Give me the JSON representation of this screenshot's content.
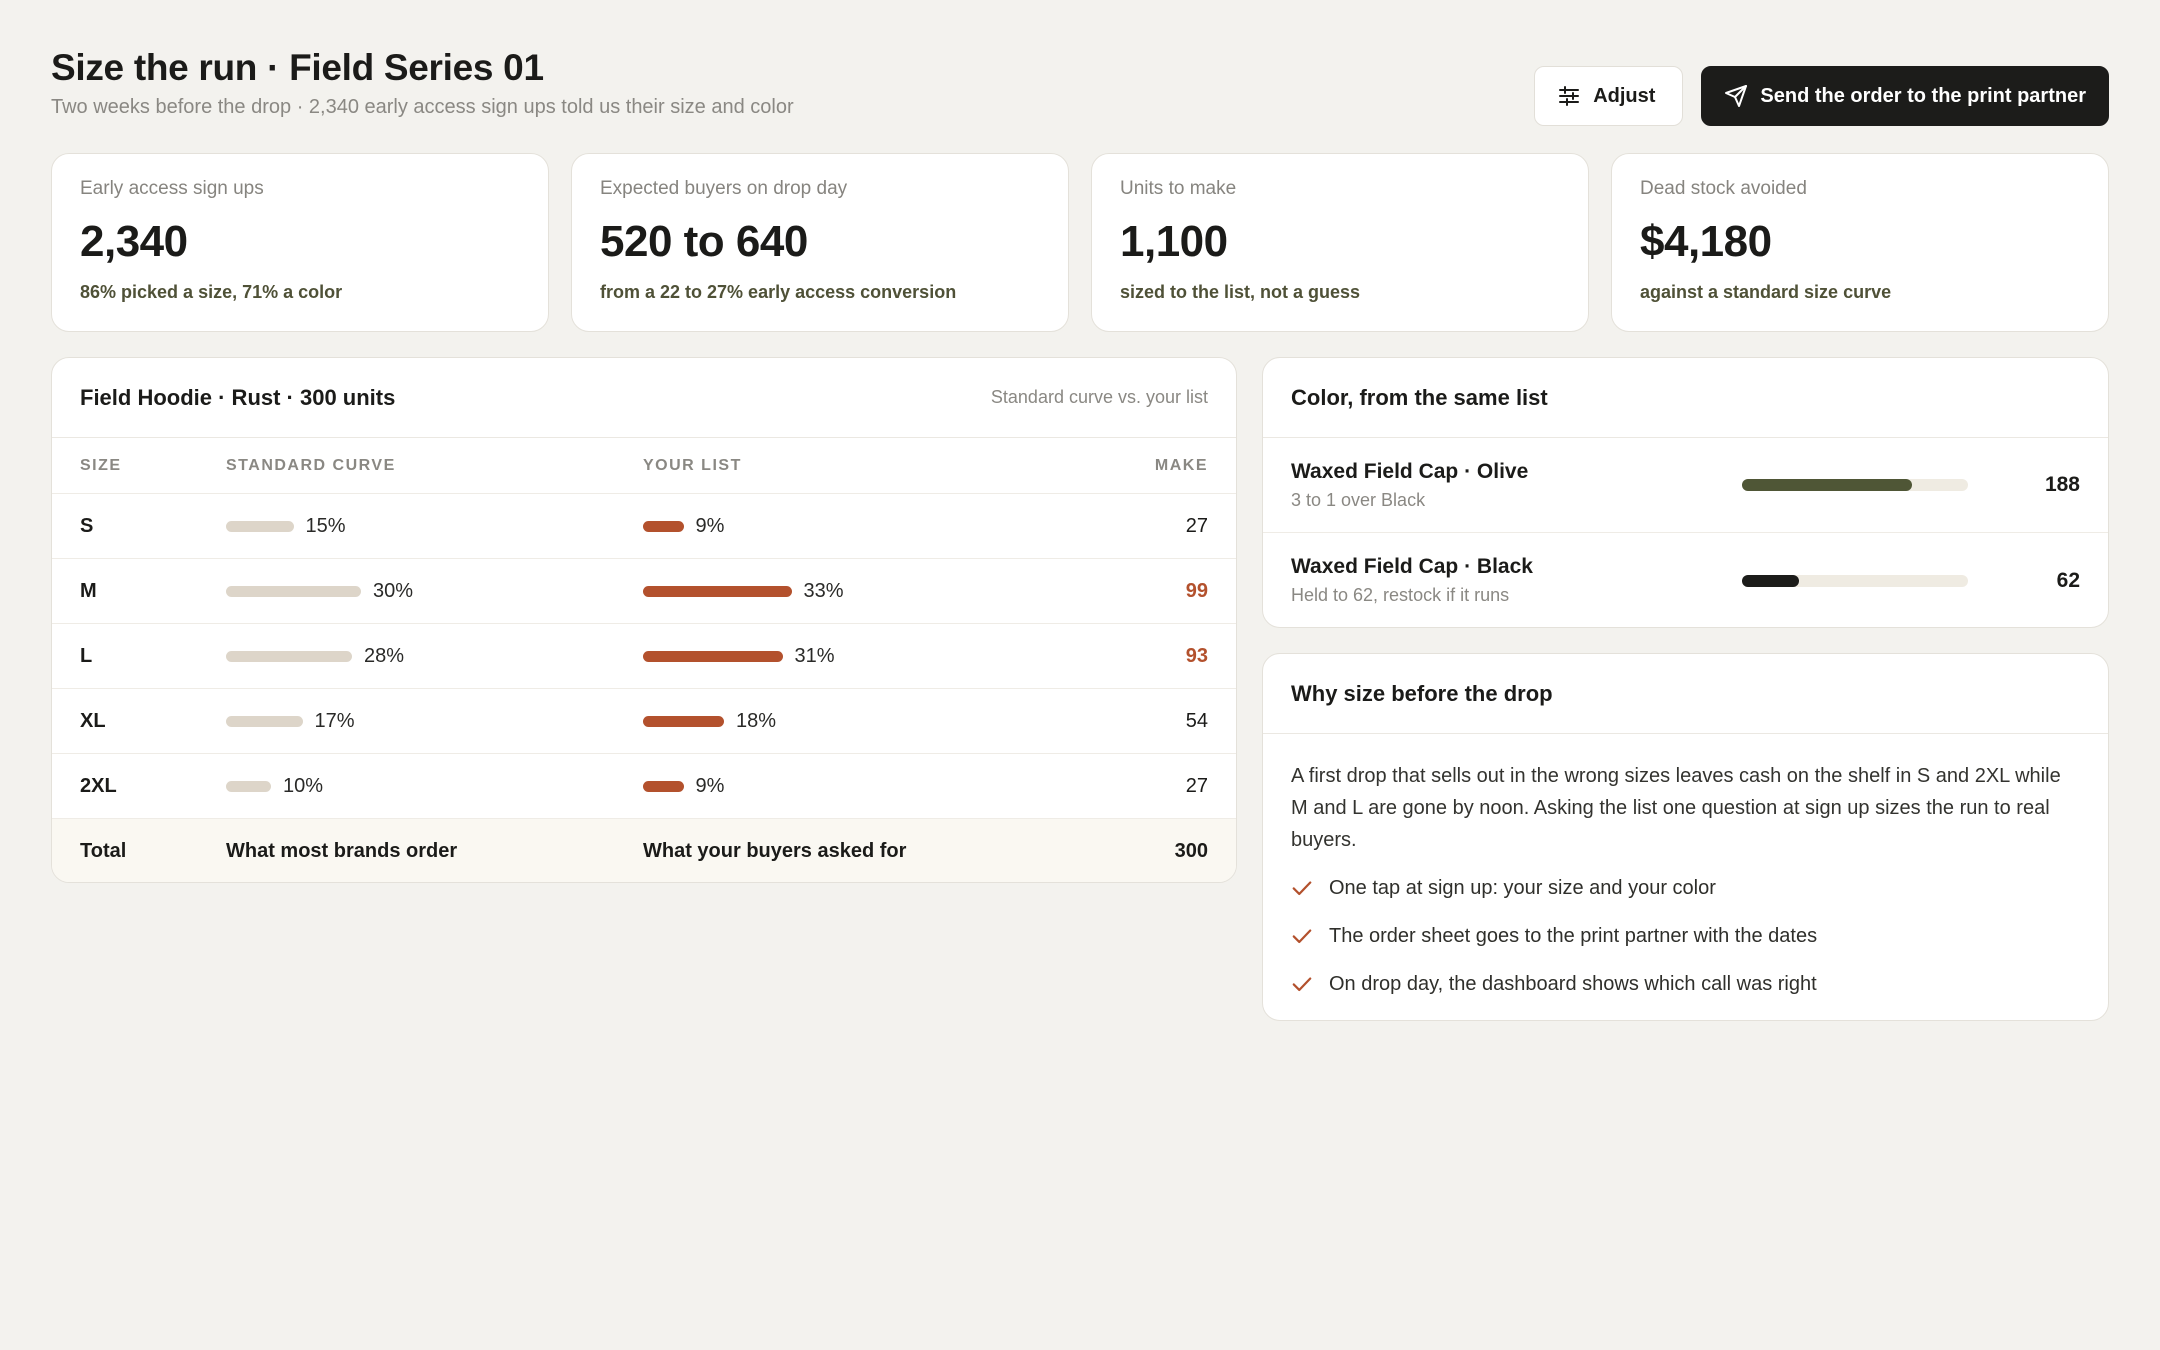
{
  "header": {
    "title": "Size the run · Field Series 01",
    "subtitle": "Two weeks before the drop · 2,340 early access sign ups told us their size and color",
    "adjust_label": "Adjust",
    "send_label": "Send the order to the print partner"
  },
  "kpis": [
    {
      "label": "Early access sign ups",
      "value": "2,340",
      "note": "86% picked a size, 71% a color"
    },
    {
      "label": "Expected buyers on drop day",
      "value": "520 to 640",
      "note": "from a 22 to 27% early access conversion"
    },
    {
      "label": "Units to make",
      "value": "1,100",
      "note": "sized to the list, not a guess"
    },
    {
      "label": "Dead stock avoided",
      "value": "$4,180",
      "note": "against a standard size curve"
    }
  ],
  "size_table": {
    "title": "Field Hoodie · Rust · 300 units",
    "aside": "Standard curve vs. your list",
    "columns": {
      "size": "SIZE",
      "std": "STANDARD CURVE",
      "list": "YOUR LIST",
      "make": "MAKE"
    },
    "rows": [
      {
        "size": "S",
        "std_pct": 15,
        "std": "15%",
        "list_pct": 9,
        "list": "9%",
        "make": "27",
        "highlight": false
      },
      {
        "size": "M",
        "std_pct": 30,
        "std": "30%",
        "list_pct": 33,
        "list": "33%",
        "make": "99",
        "highlight": true
      },
      {
        "size": "L",
        "std_pct": 28,
        "std": "28%",
        "list_pct": 31,
        "list": "31%",
        "make": "93",
        "highlight": true
      },
      {
        "size": "XL",
        "std_pct": 17,
        "std": "17%",
        "list_pct": 18,
        "list": "18%",
        "make": "54",
        "highlight": false
      },
      {
        "size": "2XL",
        "std_pct": 10,
        "std": "10%",
        "list_pct": 9,
        "list": "9%",
        "make": "27",
        "highlight": false
      }
    ],
    "total": {
      "size": "Total",
      "std": "What most brands order",
      "list": "What your buyers asked for",
      "make": "300"
    }
  },
  "color_card": {
    "title": "Color, from the same list",
    "items": [
      {
        "name": "Waxed Field Cap · Olive",
        "note": "3 to 1 over Black",
        "value": "188",
        "fill": 0.75,
        "color": "#4f5636"
      },
      {
        "name": "Waxed Field Cap · Black",
        "note": "Held to 62, restock if it runs",
        "value": "62",
        "fill": 0.25,
        "color": "#1c1c1a"
      }
    ]
  },
  "why_card": {
    "title": "Why size before the drop",
    "body": "A first drop that sells out in the wrong sizes leaves cash on the shelf in S and 2XL while M and L are gone by noon. Asking the list one question at sign up sizes the run to real buyers.",
    "points": [
      "One tap at sign up: your size and your color",
      "The order sheet goes to the print partner with the dates",
      "On drop day, the dashboard shows which call was right"
    ]
  },
  "colors": {
    "accent": "#b3512d",
    "olive": "#4f5636",
    "ink": "#1c1c1a",
    "bar_std": "#ddd5c9"
  },
  "icons": {
    "adjust": "sliders-icon",
    "send": "paper-plane-icon",
    "check": "check-icon"
  }
}
